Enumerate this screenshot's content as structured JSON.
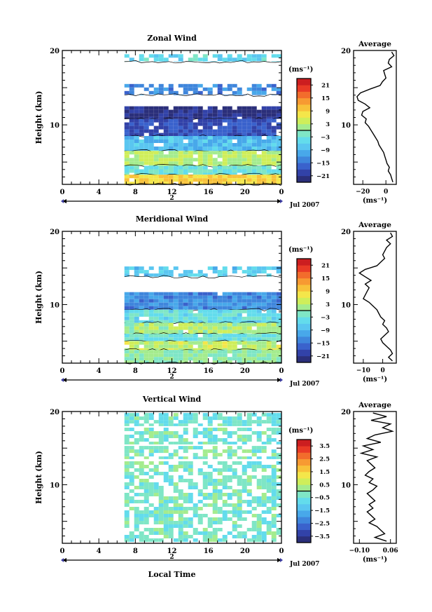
{
  "chart_data": [
    {
      "type": "heatmap",
      "title": "Zonal Wind",
      "ylabel": "Height (km)",
      "xlim": [
        0,
        24
      ],
      "ylim": [
        2,
        20
      ],
      "x_ticks": [
        "0",
        "4",
        "8",
        "12",
        "16",
        "20",
        "0"
      ],
      "y_ticks": [
        "20",
        "10"
      ],
      "date_label": "2",
      "date_range_label": "Jul 2007",
      "data_start_hour": 6.8,
      "colorbar": {
        "unit": "(ms⁻¹)",
        "ticks": [
          "21",
          "15",
          "9",
          "3",
          "−3",
          "−9",
          "−15",
          "−21"
        ],
        "range": [
          -24,
          24
        ]
      },
      "bands": [
        {
          "top": 19.5,
          "bottom": 18.5,
          "level": -5,
          "sparse": true
        },
        {
          "top": 15.5,
          "bottom": 14.0,
          "level": -13,
          "sparse": true
        },
        {
          "top": 12.5,
          "bottom": 10.8,
          "level": -22
        },
        {
          "top": 10.8,
          "bottom": 8.5,
          "level": -18
        },
        {
          "top": 8.5,
          "bottom": 6.5,
          "level": -8
        },
        {
          "top": 6.5,
          "bottom": 4.5,
          "level": 3
        },
        {
          "top": 4.5,
          "bottom": 3.3,
          "level": -3
        },
        {
          "top": 3.3,
          "bottom": 2.0,
          "level": 9
        }
      ],
      "profile": {
        "title": "Average",
        "xlabel": "(ms⁻¹)",
        "x_ticks": [
          "−20",
          "0"
        ],
        "x_tick_values": [
          -20,
          0
        ],
        "xlim": [
          -28,
          9
        ],
        "ylim": [
          2,
          20
        ],
        "y_ticks": [
          "20",
          "10"
        ],
        "height": [
          19.8,
          19.3,
          18.8,
          18.3,
          17.8,
          17.3,
          16.8,
          16.3,
          15.8,
          15.3,
          14.8,
          14.3,
          13.8,
          13.3,
          12.8,
          12.3,
          11.8,
          11.3,
          10.8,
          10.3,
          9.8,
          9.3,
          8.8,
          8.3,
          7.8,
          7.3,
          6.8,
          6.3,
          5.8,
          5.3,
          4.8,
          4.3,
          3.8,
          3.3,
          2.8,
          2.3
        ],
        "speed": [
          5,
          7,
          3,
          2,
          5,
          -2,
          -1,
          0,
          -3,
          -5,
          -14,
          -22,
          -25,
          -24,
          -18,
          -14,
          -20,
          -21,
          -17,
          -18,
          -15,
          -13,
          -11,
          -9,
          -7,
          -6,
          -4,
          -2,
          -1,
          0,
          1,
          3,
          2,
          4,
          5,
          6
        ]
      }
    },
    {
      "type": "heatmap",
      "title": "Meridional Wind",
      "ylabel": "Height (km)",
      "xlim": [
        0,
        24
      ],
      "ylim": [
        2,
        20
      ],
      "x_ticks": [
        "0",
        "4",
        "8",
        "12",
        "16",
        "20",
        "0"
      ],
      "y_ticks": [
        "20",
        "10"
      ],
      "date_label": "2",
      "date_range_label": "Jul 2007",
      "data_start_hour": 6.8,
      "colorbar": {
        "unit": "(ms⁻¹)",
        "ticks": [
          "21",
          "15",
          "9",
          "3",
          "−3",
          "−9",
          "−15",
          "−21"
        ],
        "range": [
          -24,
          24
        ]
      },
      "bands": [
        {
          "top": 15.2,
          "bottom": 13.8,
          "level": -7,
          "sparse": true
        },
        {
          "top": 11.7,
          "bottom": 9.3,
          "level": -13
        },
        {
          "top": 9.3,
          "bottom": 7.5,
          "level": -4
        },
        {
          "top": 7.5,
          "bottom": 6.0,
          "level": 2
        },
        {
          "top": 6.0,
          "bottom": 5.0,
          "level": -3
        },
        {
          "top": 5.0,
          "bottom": 3.8,
          "level": 4
        },
        {
          "top": 3.8,
          "bottom": 2.0,
          "level": 0
        }
      ],
      "profile": {
        "title": "Average",
        "xlabel": "(ms⁻¹)",
        "x_ticks": [
          "−10",
          "0"
        ],
        "x_tick_values": [
          -10,
          0
        ],
        "xlim": [
          -15,
          7
        ],
        "ylim": [
          2,
          20
        ],
        "y_ticks": [
          "20",
          "10"
        ],
        "height": [
          19.8,
          19.3,
          18.8,
          18.3,
          17.8,
          17.3,
          16.8,
          16.3,
          15.8,
          15.3,
          14.8,
          14.3,
          13.8,
          13.3,
          12.8,
          12.3,
          11.8,
          11.3,
          10.8,
          10.3,
          9.8,
          9.3,
          8.8,
          8.3,
          7.8,
          7.3,
          6.8,
          6.3,
          5.8,
          5.3,
          4.8,
          4.3,
          3.8,
          3.3,
          2.8,
          2.3
        ],
        "speed": [
          4,
          5,
          2,
          4,
          2,
          1,
          0,
          1,
          -1,
          -3,
          -9,
          -12,
          -9,
          -6,
          -9,
          -7,
          -8,
          -9,
          -10,
          -7,
          -5,
          -3,
          -2,
          -1,
          1,
          0,
          2,
          3,
          1,
          -1,
          0,
          2,
          4,
          5,
          3,
          5
        ]
      }
    },
    {
      "type": "heatmap",
      "title": "Vertical Wind",
      "ylabel": "Height (km)",
      "xlabel": "Local Time",
      "xlim": [
        0,
        24
      ],
      "ylim": [
        2,
        20
      ],
      "x_ticks": [
        "0",
        "4",
        "8",
        "12",
        "16",
        "20",
        "0"
      ],
      "y_ticks": [
        "20",
        "10"
      ],
      "date_label": "2",
      "date_range_label": "Jul 2007",
      "data_start_hour": 6.8,
      "colorbar": {
        "unit": "(ms⁻¹)",
        "ticks": [
          "3.5",
          "2.5",
          "1.5",
          "0.5",
          "−0.5",
          "−1.5",
          "−2.5",
          "−3.5"
        ],
        "range": [
          -4,
          4
        ]
      },
      "bands": [
        {
          "top": 19.8,
          "bottom": 18.0,
          "level": -0.4,
          "sparse": true
        },
        {
          "top": 17.8,
          "bottom": 15.5,
          "level": -0.3,
          "sparse": true
        },
        {
          "top": 15.3,
          "bottom": 13.5,
          "level": -0.2,
          "sparse": true
        },
        {
          "top": 13.2,
          "bottom": 2.2,
          "level": -0.3,
          "sparse": true
        }
      ],
      "profile": {
        "title": "Average",
        "xlabel": "(ms⁻¹)",
        "x_ticks": [
          "−0.10",
          "0.06"
        ],
        "x_tick_values": [
          -0.1,
          0.06
        ],
        "xlim": [
          -0.13,
          0.09
        ],
        "ylim": [
          2,
          20
        ],
        "y_ticks": [
          "20",
          "10"
        ],
        "height": [
          19.8,
          19.3,
          18.8,
          18.3,
          17.8,
          17.3,
          16.8,
          16.3,
          15.8,
          15.3,
          14.8,
          14.3,
          13.8,
          13.3,
          12.8,
          12.3,
          11.8,
          11.3,
          10.8,
          10.3,
          9.8,
          9.3,
          8.8,
          8.3,
          7.8,
          7.3,
          6.8,
          6.3,
          5.8,
          5.3,
          4.8,
          4.3,
          3.8,
          3.3,
          2.8,
          2.3
        ],
        "speed": [
          -0.03,
          0.04,
          -0.04,
          0.06,
          0.02,
          0.07,
          -0.02,
          -0.06,
          0.01,
          -0.08,
          -0.03,
          -0.09,
          -0.01,
          -0.06,
          -0.04,
          -0.02,
          -0.05,
          -0.07,
          -0.03,
          -0.05,
          -0.01,
          -0.03,
          -0.06,
          -0.04,
          -0.02,
          -0.05,
          -0.03,
          -0.06,
          -0.04,
          -0.02,
          -0.05,
          -0.01,
          0.01,
          0.03,
          -0.02,
          0.04
        ]
      }
    }
  ],
  "palette": [
    "#2b2f7a",
    "#3242a8",
    "#3a62cc",
    "#3f86dc",
    "#48a8ea",
    "#5ac6f0",
    "#63dcec",
    "#7fe6c6",
    "#a4ec8e",
    "#cfee5a",
    "#f4e64a",
    "#f8c23a",
    "#f79a32",
    "#f26c2c",
    "#e93a26",
    "#cc1e20"
  ]
}
